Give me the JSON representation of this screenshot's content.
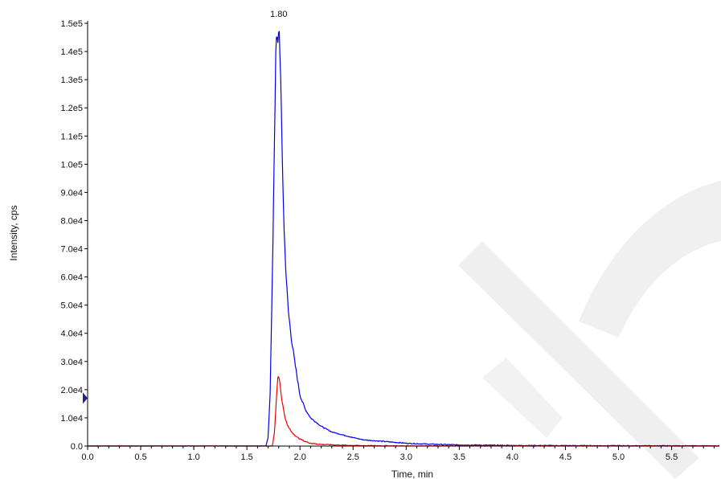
{
  "chart_data": {
    "type": "line",
    "xlabel": "Time, min",
    "ylabel": "Intensity, cps",
    "xlim": [
      0.0,
      5.95
    ],
    "ylim": [
      0,
      150000
    ],
    "grid": false,
    "x_ticks": [
      "0.0",
      "0.5",
      "1.0",
      "1.5",
      "2.0",
      "2.5",
      "3.0",
      "3.5",
      "4.0",
      "4.5",
      "5.0",
      "5.5"
    ],
    "y_ticks": [
      "0.0",
      "1.0e4",
      "2.0e4",
      "3.0e4",
      "4.0e4",
      "5.0e4",
      "6.0e4",
      "7.0e4",
      "8.0e4",
      "9.0e4",
      "1.0e5",
      "1.1e5",
      "1.2e5",
      "1.3e5",
      "1.4e5",
      "1.5e5"
    ],
    "y_marker_value": 17000,
    "annotations": [
      {
        "text": "1.80",
        "x": 1.8,
        "y": 150000
      }
    ],
    "series": [
      {
        "color": "#0000ee",
        "x": [
          0.0,
          1.68,
          1.7,
          1.72,
          1.74,
          1.76,
          1.77,
          1.78,
          1.79,
          1.8,
          1.81,
          1.82,
          1.83,
          1.84,
          1.85,
          1.87,
          1.89,
          1.92,
          1.95,
          2.0,
          2.05,
          2.1,
          2.2,
          2.3,
          2.4,
          2.5,
          2.6,
          2.8,
          3.0,
          3.2,
          3.5,
          4.0,
          5.0,
          5.95
        ],
        "y": [
          0,
          0,
          3000,
          20000,
          60000,
          110000,
          135000,
          146000,
          140000,
          150000,
          143000,
          126000,
          108000,
          92000,
          77000,
          60000,
          48000,
          38000,
          30000,
          18000,
          13000,
          10000,
          7000,
          5000,
          4000,
          3000,
          2200,
          1600,
          1000,
          700,
          400,
          200,
          100,
          0
        ]
      },
      {
        "color": "#ee0000",
        "x": [
          0.0,
          1.74,
          1.76,
          1.78,
          1.79,
          1.8,
          1.81,
          1.82,
          1.84,
          1.86,
          1.88,
          1.92,
          1.97,
          2.0,
          2.05,
          2.1,
          2.2,
          2.4,
          2.6,
          3.0,
          5.95
        ],
        "y": [
          0,
          0,
          5000,
          18000,
          24000,
          25000,
          23000,
          19000,
          14000,
          10000,
          7500,
          5000,
          3200,
          2500,
          1600,
          1000,
          600,
          300,
          150,
          0,
          0
        ]
      }
    ]
  }
}
